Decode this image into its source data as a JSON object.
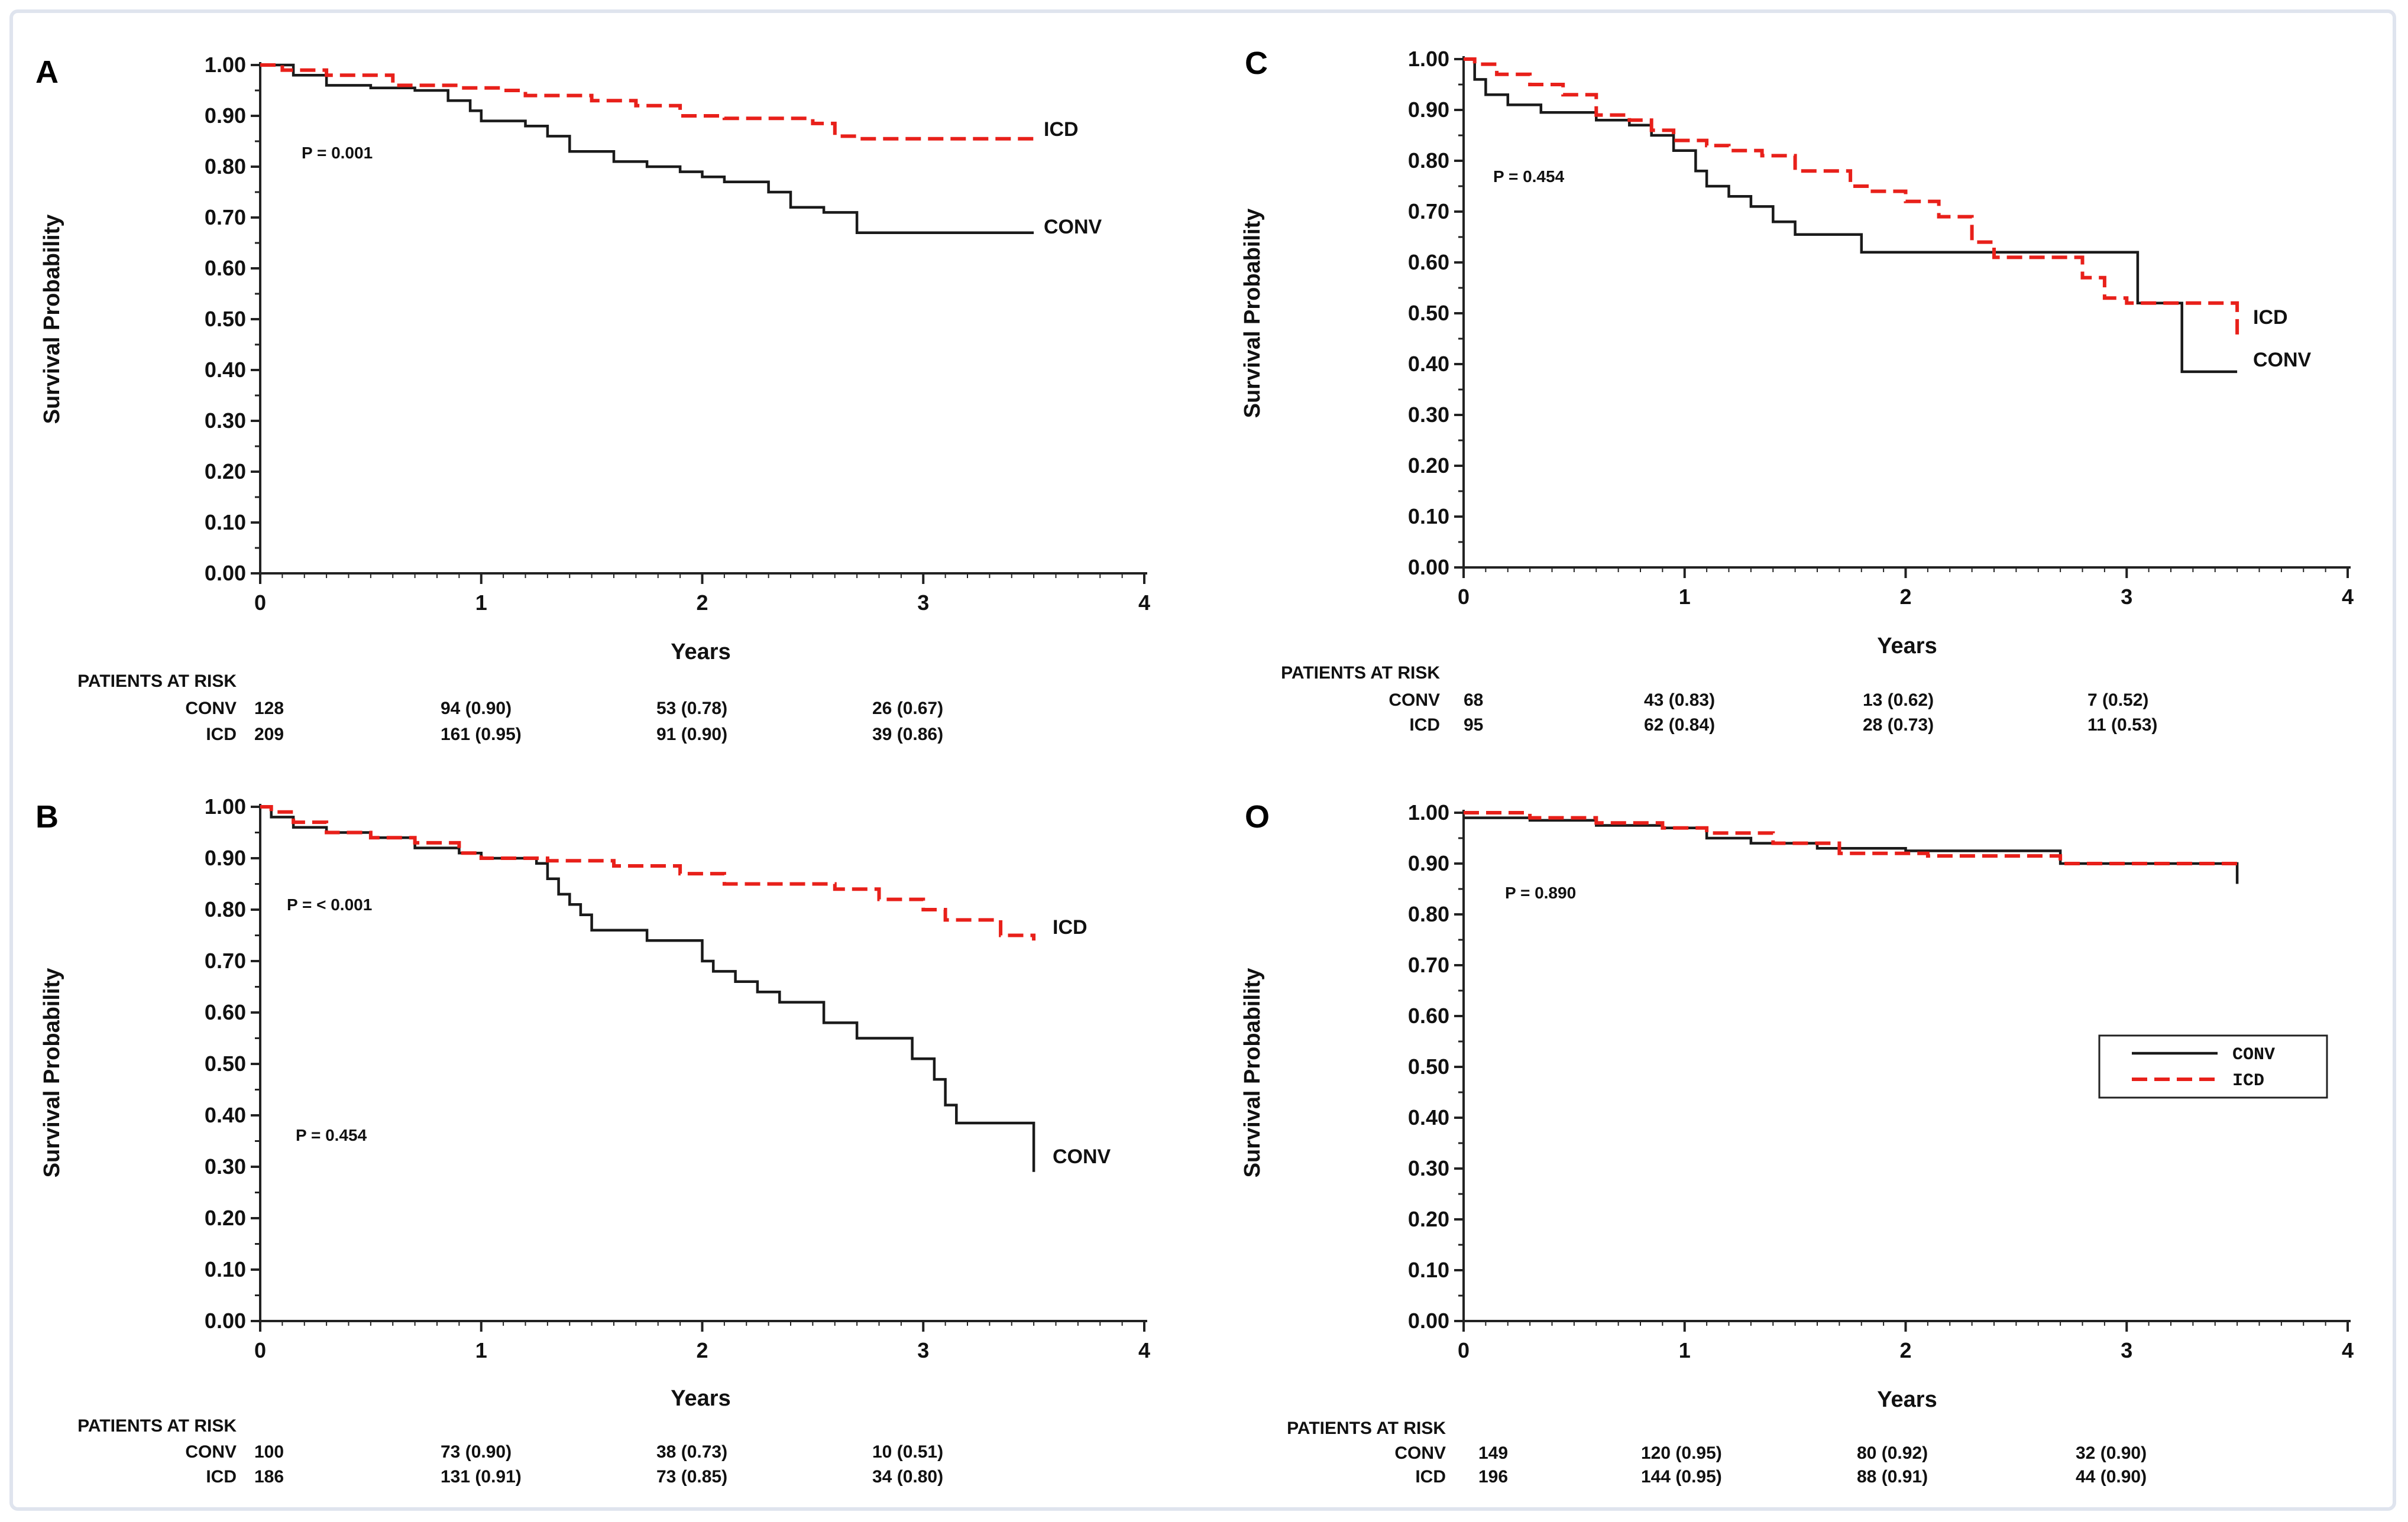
{
  "colors": {
    "conv": "#1a1a1a",
    "icd": "#e8201a",
    "axis": "#222222",
    "frame": "#dfe4ee"
  },
  "chart_data": [
    {
      "panel": "A",
      "type": "line",
      "xlabel": "Years",
      "ylabel": "Survival Probability",
      "xlim": [
        0,
        4
      ],
      "ylim": [
        0,
        1
      ],
      "x_ticks": [
        "0",
        "1",
        "2",
        "3",
        "4"
      ],
      "y_ticks": [
        "0.00",
        "0.10",
        "0.20",
        "0.30",
        "0.40",
        "0.50",
        "0.60",
        "0.70",
        "0.80",
        "0.90",
        "1.00"
      ],
      "p_values": [
        "P = 0.001"
      ],
      "end_labels": [
        {
          "series": "icd",
          "text": "ICD"
        },
        {
          "series": "conv",
          "text": "CONV"
        }
      ],
      "series": [
        {
          "name": "CONV",
          "style": "solid",
          "x": [
            0,
            0.15,
            0.3,
            0.5,
            0.7,
            0.85,
            0.95,
            1.0,
            1.2,
            1.3,
            1.4,
            1.6,
            1.75,
            1.9,
            2.0,
            2.1,
            2.3,
            2.4,
            2.55,
            2.7,
            3.5
          ],
          "y": [
            1.0,
            0.98,
            0.96,
            0.955,
            0.95,
            0.93,
            0.91,
            0.89,
            0.88,
            0.86,
            0.83,
            0.81,
            0.8,
            0.79,
            0.78,
            0.77,
            0.75,
            0.72,
            0.71,
            0.67,
            0.67
          ]
        },
        {
          "name": "ICD",
          "style": "dashed",
          "x": [
            0,
            0.1,
            0.3,
            0.6,
            0.9,
            1.1,
            1.2,
            1.5,
            1.7,
            1.9,
            2.1,
            2.5,
            2.6,
            2.7,
            3.5
          ],
          "y": [
            1.0,
            0.99,
            0.98,
            0.96,
            0.955,
            0.95,
            0.94,
            0.93,
            0.92,
            0.9,
            0.895,
            0.885,
            0.86,
            0.855,
            0.855
          ]
        }
      ],
      "at_risk": {
        "title": "PATIENTS AT RISK",
        "rows": [
          {
            "label": "CONV",
            "cells": [
              "128",
              "94 (0.90)",
              "53 (0.78)",
              "26 (0.67)"
            ]
          },
          {
            "label": "ICD",
            "cells": [
              "209",
              "161 (0.95)",
              "91 (0.90)",
              "39 (0.86)"
            ]
          }
        ]
      }
    },
    {
      "panel": "C",
      "type": "line",
      "xlabel": "Years",
      "ylabel": "Survival Probability",
      "xlim": [
        0,
        4
      ],
      "ylim": [
        0,
        1
      ],
      "x_ticks": [
        "0",
        "1",
        "2",
        "3",
        "4"
      ],
      "y_ticks": [
        "0.00",
        "0.10",
        "0.20",
        "0.30",
        "0.40",
        "0.50",
        "0.60",
        "0.70",
        "0.80",
        "0.90",
        "1.00"
      ],
      "p_values": [
        "P = 0.454"
      ],
      "end_labels": [
        {
          "series": "icd",
          "text": "ICD"
        },
        {
          "series": "conv",
          "text": "CONV"
        }
      ],
      "series": [
        {
          "name": "CONV",
          "style": "solid",
          "x": [
            0,
            0.05,
            0.1,
            0.2,
            0.35,
            0.6,
            0.75,
            0.85,
            0.95,
            1.05,
            1.1,
            1.2,
            1.3,
            1.4,
            1.5,
            1.8,
            3.05,
            3.25,
            3.5
          ],
          "y": [
            1.0,
            0.96,
            0.93,
            0.91,
            0.895,
            0.88,
            0.87,
            0.85,
            0.82,
            0.78,
            0.75,
            0.73,
            0.71,
            0.68,
            0.655,
            0.62,
            0.52,
            0.385,
            0.385
          ]
        },
        {
          "name": "ICD",
          "style": "dashed",
          "x": [
            0,
            0.05,
            0.15,
            0.3,
            0.45,
            0.6,
            0.75,
            0.85,
            0.95,
            1.1,
            1.2,
            1.35,
            1.5,
            1.75,
            1.85,
            2.0,
            2.15,
            2.3,
            2.4,
            2.8,
            2.9,
            3.0,
            3.5
          ],
          "y": [
            1.0,
            0.99,
            0.97,
            0.95,
            0.93,
            0.89,
            0.88,
            0.86,
            0.84,
            0.83,
            0.82,
            0.81,
            0.78,
            0.75,
            0.74,
            0.72,
            0.69,
            0.64,
            0.61,
            0.57,
            0.53,
            0.52,
            0.45
          ]
        }
      ],
      "at_risk": {
        "title": "PATIENTS AT RISK",
        "rows": [
          {
            "label": "CONV",
            "cells": [
              "68",
              "43 (0.83)",
              "13 (0.62)",
              "7 (0.52)"
            ]
          },
          {
            "label": "ICD",
            "cells": [
              "95",
              "62 (0.84)",
              "28 (0.73)",
              "11 (0.53)"
            ]
          }
        ]
      }
    },
    {
      "panel": "B",
      "type": "line",
      "xlabel": "Years",
      "ylabel": "Survival Probability",
      "xlim": [
        0,
        4
      ],
      "ylim": [
        0,
        1
      ],
      "x_ticks": [
        "0",
        "1",
        "2",
        "3",
        "4"
      ],
      "y_ticks": [
        "0.00",
        "0.10",
        "0.20",
        "0.30",
        "0.40",
        "0.50",
        "0.60",
        "0.70",
        "0.80",
        "0.90",
        "1.00"
      ],
      "p_values": [
        "P = < 0.001",
        "P = 0.454"
      ],
      "end_labels": [
        {
          "series": "icd",
          "text": "ICD"
        },
        {
          "series": "conv",
          "text": "CONV"
        }
      ],
      "series": [
        {
          "name": "CONV",
          "style": "solid",
          "x": [
            0,
            0.05,
            0.15,
            0.3,
            0.5,
            0.7,
            0.9,
            1.0,
            1.25,
            1.3,
            1.35,
            1.4,
            1.45,
            1.5,
            1.6,
            1.75,
            1.9,
            2.0,
            2.05,
            2.15,
            2.25,
            2.35,
            2.45,
            2.55,
            2.7,
            2.95,
            3.05,
            3.1,
            3.15,
            3.5
          ],
          "y": [
            1.0,
            0.98,
            0.96,
            0.95,
            0.94,
            0.92,
            0.91,
            0.9,
            0.89,
            0.86,
            0.83,
            0.81,
            0.79,
            0.76,
            0.76,
            0.74,
            0.74,
            0.7,
            0.68,
            0.66,
            0.64,
            0.62,
            0.62,
            0.58,
            0.55,
            0.51,
            0.47,
            0.42,
            0.385,
            0.29
          ]
        },
        {
          "name": "ICD",
          "style": "dashed",
          "x": [
            0,
            0.05,
            0.15,
            0.3,
            0.5,
            0.7,
            0.9,
            1.0,
            1.3,
            1.6,
            1.9,
            2.1,
            2.6,
            2.8,
            3.0,
            3.1,
            3.35,
            3.5
          ],
          "y": [
            1.0,
            0.99,
            0.97,
            0.95,
            0.94,
            0.93,
            0.91,
            0.9,
            0.895,
            0.885,
            0.87,
            0.85,
            0.84,
            0.82,
            0.8,
            0.78,
            0.75,
            0.74
          ]
        }
      ],
      "at_risk": {
        "title": "PATIENTS AT RISK",
        "rows": [
          {
            "label": "CONV",
            "cells": [
              "100",
              "73 (0.90)",
              "38 (0.73)",
              "10 (0.51)"
            ]
          },
          {
            "label": "ICD",
            "cells": [
              "186",
              "131 (0.91)",
              "73 (0.85)",
              "34 (0.80)"
            ]
          }
        ]
      }
    },
    {
      "panel": "O",
      "type": "line",
      "xlabel": "Years",
      "ylabel": "Survival Probability",
      "xlim": [
        0,
        4
      ],
      "ylim": [
        0,
        1
      ],
      "x_ticks": [
        "0",
        "1",
        "2",
        "3",
        "4"
      ],
      "y_ticks": [
        "0.00",
        "0.10",
        "0.20",
        "0.30",
        "0.40",
        "0.50",
        "0.60",
        "0.70",
        "0.80",
        "0.90",
        "1.00"
      ],
      "p_values": [
        "P = 0.890"
      ],
      "end_labels": [],
      "legend": [
        {
          "series": "conv",
          "text": "CONV"
        },
        {
          "series": "icd",
          "text": "ICD"
        }
      ],
      "series": [
        {
          "name": "CONV",
          "style": "solid",
          "x": [
            0,
            0.3,
            0.6,
            0.9,
            1.1,
            1.3,
            1.6,
            2.0,
            2.7,
            3.5
          ],
          "y": [
            0.99,
            0.985,
            0.975,
            0.97,
            0.95,
            0.94,
            0.93,
            0.925,
            0.9,
            0.86
          ]
        },
        {
          "name": "ICD",
          "style": "dashed",
          "x": [
            0,
            0.3,
            0.6,
            0.9,
            1.1,
            1.4,
            1.7,
            2.1,
            2.7,
            3.5
          ],
          "y": [
            1.0,
            0.99,
            0.98,
            0.97,
            0.96,
            0.94,
            0.92,
            0.915,
            0.9,
            0.895
          ]
        }
      ],
      "at_risk": {
        "title": "PATIENTS AT RISK",
        "rows": [
          {
            "label": "CONV",
            "cells": [
              "149",
              "120 (0.95)",
              "80 (0.92)",
              "32 (0.90)"
            ]
          },
          {
            "label": "ICD",
            "cells": [
              "196",
              "144 (0.95)",
              "88 (0.91)",
              "44 (0.90)"
            ]
          }
        ]
      }
    }
  ]
}
